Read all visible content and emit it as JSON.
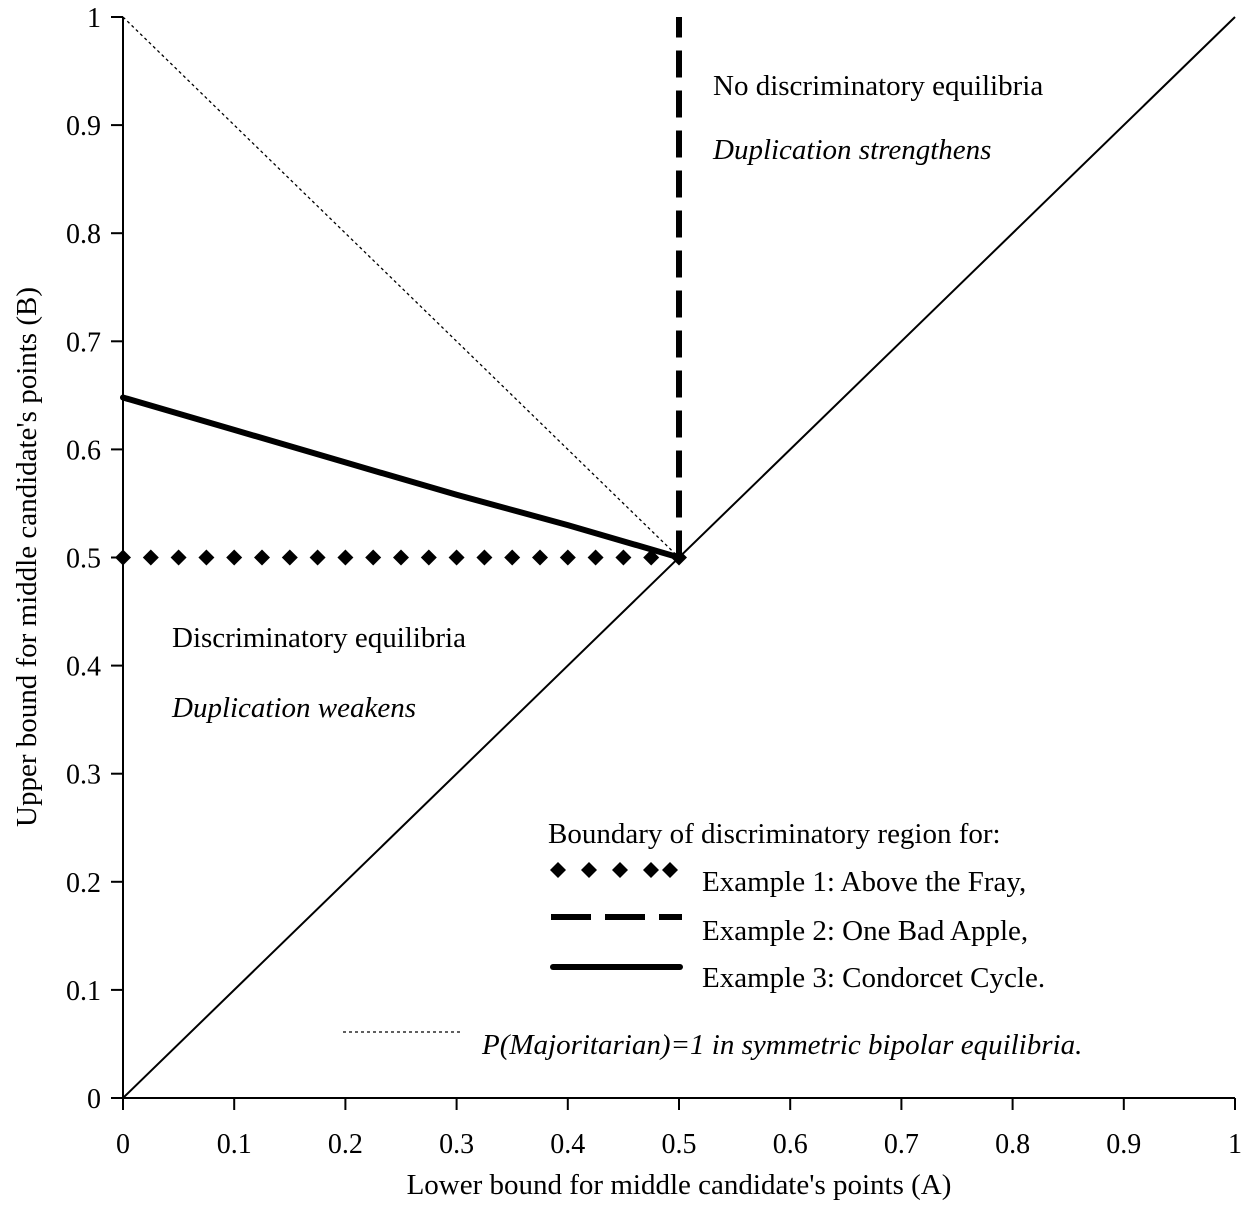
{
  "chart_data": {
    "type": "line",
    "title": "",
    "xlabel": "Lower bound for middle candidate's points (A)",
    "ylabel": "Upper bound for middle candidate's points (B)",
    "xlim": [
      0,
      1
    ],
    "ylim": [
      0,
      1
    ],
    "x_ticks": [
      "0",
      "0.1",
      "0.2",
      "0.3",
      "0.4",
      "0.5",
      "0.6",
      "0.7",
      "0.8",
      "0.9",
      "1"
    ],
    "y_ticks": [
      "0",
      "0.1",
      "0.2",
      "0.3",
      "0.4",
      "0.5",
      "0.6",
      "0.7",
      "0.8",
      "0.9",
      "1"
    ],
    "grid": false,
    "series": [
      {
        "style": "solid-thin",
        "x": [
          0,
          1
        ],
        "y": [
          0,
          1
        ]
      },
      {
        "style": "diamond-markers",
        "x": [
          0,
          0.025,
          0.05,
          0.075,
          0.1,
          0.125,
          0.15,
          0.175,
          0.2,
          0.225,
          0.25,
          0.275,
          0.3,
          0.325,
          0.35,
          0.375,
          0.4,
          0.425,
          0.45,
          0.475,
          0.5
        ],
        "y": [
          0.5,
          0.5,
          0.5,
          0.5,
          0.5,
          0.5,
          0.5,
          0.5,
          0.5,
          0.5,
          0.5,
          0.5,
          0.5,
          0.5,
          0.5,
          0.5,
          0.5,
          0.5,
          0.5,
          0.5,
          0.5
        ]
      },
      {
        "style": "dashed-thick",
        "x": [
          0.5,
          0.5
        ],
        "y": [
          0.5,
          1
        ]
      },
      {
        "style": "solid-thick",
        "x": [
          0,
          0.1,
          0.2,
          0.3,
          0.4,
          0.5
        ],
        "y": [
          0.648,
          0.618,
          0.588,
          0.558,
          0.53,
          0.5
        ]
      },
      {
        "style": "dotted-thin",
        "x": [
          0,
          0.5
        ],
        "y": [
          1,
          0.5
        ]
      }
    ],
    "regions": [
      {
        "label": "No discriminatory equilibria",
        "note": "Duplication strengthens"
      },
      {
        "label": "Discriminatory equilibria",
        "note": "Duplication weakens"
      }
    ],
    "legend": {
      "placement": "bottom-right",
      "title": "Boundary of discriminatory region for:",
      "entries": [
        {
          "label": "Example 1: Above the Fray,",
          "style": "diamond-markers"
        },
        {
          "label": "Example 2: One Bad Apple,",
          "style": "dashed-thick"
        },
        {
          "label": "Example 3: Condorcet Cycle.",
          "style": "solid-thick"
        },
        {
          "label": "P(Majoritarian)=1 in symmetric bipolar equilibria.",
          "style": "dotted-thin"
        }
      ]
    }
  }
}
